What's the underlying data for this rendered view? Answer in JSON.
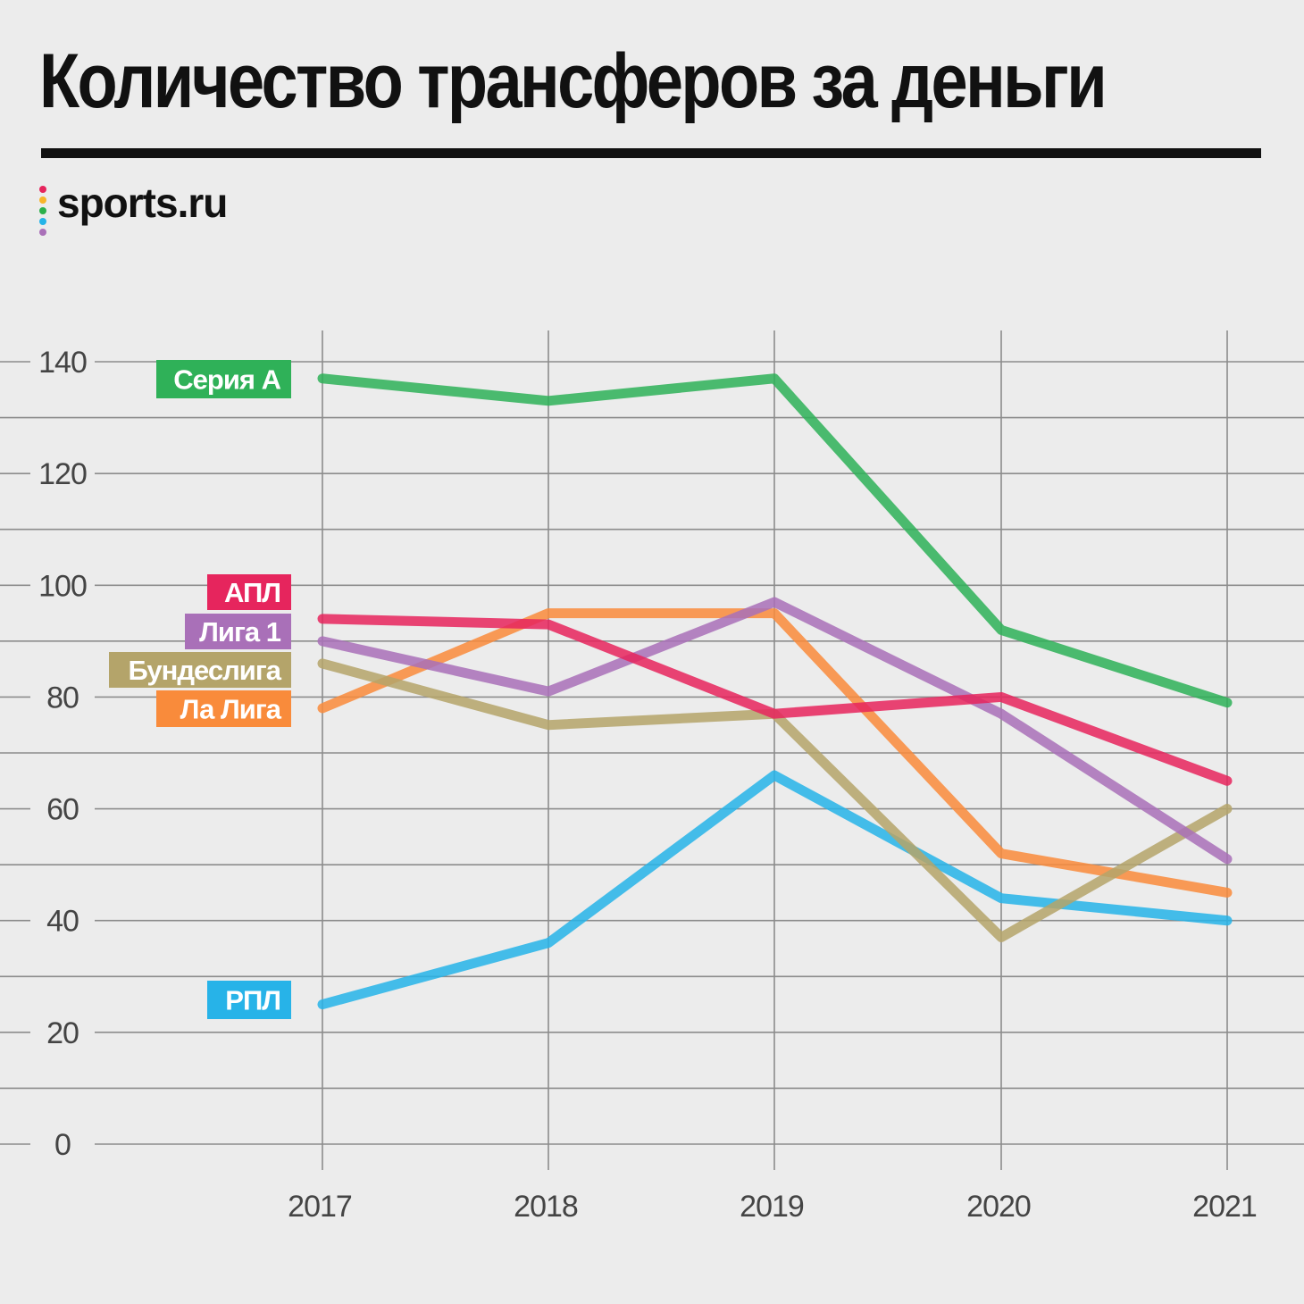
{
  "header": {
    "title": "Количество трансферов за деньги",
    "logo_text": "sports.ru",
    "logo_dot_colors": [
      "#e6255d",
      "#f7b52b",
      "#2bb04a",
      "#25b4e8",
      "#a970b8"
    ]
  },
  "chart_data": {
    "type": "line",
    "title": "Количество трансферов за деньги",
    "xlabel": "",
    "ylabel": "",
    "x": [
      "2017",
      "2018",
      "2019",
      "2020",
      "2021"
    ],
    "ylim": [
      0,
      140
    ],
    "yticks": [
      0,
      20,
      40,
      60,
      80,
      100,
      120,
      140
    ],
    "grid": true,
    "legend": "direct labels at left of lines",
    "series": [
      {
        "name": "Серия А",
        "color": "#2fb158",
        "values": [
          137,
          133,
          137,
          92,
          79
        ]
      },
      {
        "name": "АПЛ",
        "color": "#e6255d",
        "values": [
          94,
          93,
          77,
          80,
          65
        ]
      },
      {
        "name": "Лига 1",
        "color": "#a970b8",
        "values": [
          90,
          81,
          97,
          77,
          51
        ]
      },
      {
        "name": "Бундеслига",
        "color": "#b4a46a",
        "values": [
          86,
          75,
          77,
          37,
          60
        ]
      },
      {
        "name": "Ла Лига",
        "color": "#f98b3b",
        "values": [
          78,
          95,
          95,
          52,
          45
        ]
      },
      {
        "name": "РПЛ",
        "color": "#27b3e8",
        "values": [
          25,
          36,
          66,
          44,
          40
        ]
      }
    ]
  }
}
